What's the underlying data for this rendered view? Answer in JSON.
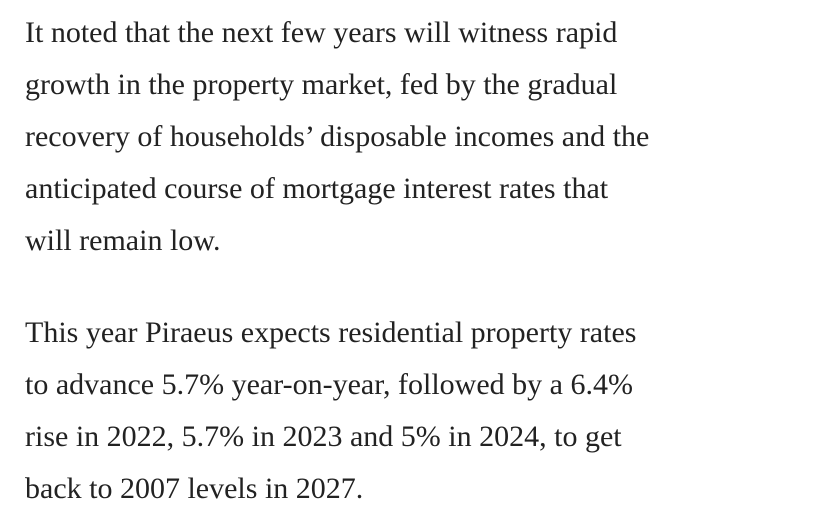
{
  "article": {
    "background_color": "#ffffff",
    "text_color": "#222222",
    "paragraphs": [
      {
        "lines": [
          "It noted that the next few years will witness rapid",
          "growth in the property market, fed by the gradual",
          "recovery of households’ disposable incomes and the",
          "anticipated course of mortgage interest rates that",
          "will remain low."
        ],
        "full_text": "It noted that the next few years will witness rapid growth in the property market, fed by the gradual recovery of households’ disposable incomes and the anticipated course of mortgage interest rates that will remain low."
      },
      {
        "lines": [
          "This year Piraeus expects residential property rates",
          "to advance 5.7% year-on-year, followed by a 6.4%",
          "rise in 2022, 5.7% in 2023 and 5% in 2024, to get",
          "back to 2007 levels in 2027."
        ],
        "full_text": "This year Piraeus expects residential property rates to advance 5.7% year-on-year, followed by a 6.4% rise in 2022, 5.7% in 2023 and 5% in 2024, to get back to 2007 levels in 2027."
      }
    ]
  }
}
